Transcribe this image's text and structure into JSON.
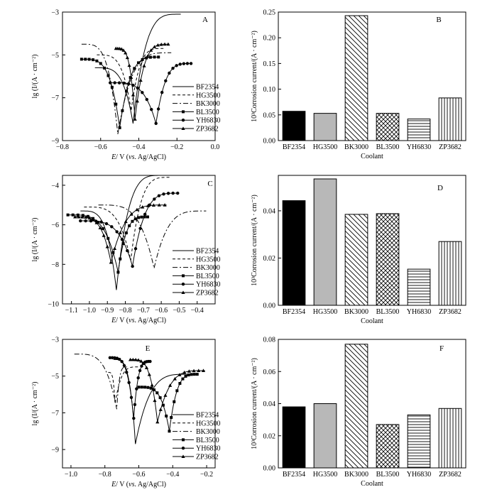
{
  "colors": {
    "black": "#000000",
    "gray": "#b8b8b8",
    "white": "#ffffff"
  },
  "legend": [
    "BF2354",
    "HG3500",
    "BK3000",
    "BL3500",
    "YH6830",
    "ZP3682"
  ],
  "chart_data": [
    {
      "panel": "A",
      "type": "line",
      "xlabel_parts": [
        "E",
        "/ V (",
        "vs",
        ". Ag/AgCl)"
      ],
      "ylabel": "lg (I/(A · cm⁻²)",
      "xlim": [
        -0.8,
        0.0
      ],
      "ylim": [
        -9,
        -3
      ],
      "xticks": [
        -0.8,
        -0.6,
        -0.4,
        -0.2,
        0.0
      ],
      "xtick_labels": [
        "−0.8",
        "−0.6",
        "−0.4",
        "−0.2",
        "0.0"
      ],
      "yticks": [
        -9,
        -7,
        -5,
        -3
      ],
      "ytick_labels": [
        "−9",
        "−7",
        "−5",
        "−3"
      ],
      "series": [
        {
          "name": "BF2354",
          "Ecorr": -0.43,
          "Ic": -8.2,
          "start": [
            -0.63,
            -5.6
          ],
          "end": [
            -0.18,
            -3.1
          ]
        },
        {
          "name": "HG3500",
          "Ecorr": -0.44,
          "Ic": -7.6,
          "start": [
            -0.62,
            -5.0
          ],
          "end": [
            -0.27,
            -4.7
          ]
        },
        {
          "name": "BK3000",
          "Ecorr": -0.51,
          "Ic": -8.7,
          "start": [
            -0.7,
            -4.5
          ],
          "end": [
            -0.23,
            -4.9
          ]
        },
        {
          "name": "BL3500",
          "Ecorr": -0.5,
          "Ic": -8.4,
          "start": [
            -0.7,
            -5.2
          ],
          "end": [
            -0.29,
            -5.1
          ]
        },
        {
          "name": "YH6830",
          "Ecorr": -0.31,
          "Ic": -8.2,
          "start": [
            -0.55,
            -6.3
          ],
          "end": [
            -0.12,
            -5.4
          ]
        },
        {
          "name": "ZP3682",
          "Ecorr": -0.42,
          "Ic": -8.0,
          "start": [
            -0.52,
            -4.7
          ],
          "end": [
            -0.24,
            -4.5
          ]
        }
      ]
    },
    {
      "panel": "B",
      "type": "bar",
      "xlabel": "Coolant",
      "ylabel": "10³Corrosion current/(A · cm⁻²)",
      "categories": [
        "BF2354",
        "HG3500",
        "BK3000",
        "BL3500",
        "YH6830",
        "ZP3682"
      ],
      "values": [
        0.057,
        0.053,
        0.243,
        0.053,
        0.042,
        0.083
      ],
      "patterns": [
        "solid-black",
        "solid-gray",
        "diag",
        "cross",
        "horiz",
        "vert"
      ],
      "ylim": [
        0,
        0.25
      ],
      "yticks": [
        0,
        0.05,
        0.1,
        0.15,
        0.2,
        0.25
      ],
      "ytick_labels": [
        "0.00",
        "0.05",
        "0.10",
        "0.15",
        "0.20",
        "0.25"
      ]
    },
    {
      "panel": "C",
      "type": "line",
      "xlabel_parts": [
        "E",
        "/ V (",
        "vs",
        ". Ag/AgCl)"
      ],
      "ylabel": "lg (I/(A · cm⁻²)",
      "xlim": [
        -1.15,
        -0.3
      ],
      "ylim": [
        -10,
        -3.5
      ],
      "xticks": [
        -1.1,
        -1.0,
        -0.9,
        -0.8,
        -0.7,
        -0.6,
        -0.5,
        -0.4
      ],
      "xtick_labels": [
        "−1.1",
        "−1.0",
        "−0.9",
        "−0.8",
        "−0.7",
        "−0.6",
        "−0.5",
        "−0.4"
      ],
      "yticks": [
        -10,
        -8,
        -6,
        -4
      ],
      "ytick_labels": [
        "−10",
        "−8",
        "−6",
        "−4"
      ],
      "series": [
        {
          "name": "BF2354",
          "Ecorr": -0.85,
          "Ic": -9.3,
          "start": [
            -1.05,
            -5.3
          ],
          "end": [
            -0.59,
            -3.5
          ]
        },
        {
          "name": "HG3500",
          "Ecorr": -0.77,
          "Ic": -7.8,
          "start": [
            -1.03,
            -5.1
          ],
          "end": [
            -0.55,
            -3.6
          ]
        },
        {
          "name": "BK3000",
          "Ecorr": -0.64,
          "Ic": -8.2,
          "start": [
            -0.95,
            -5.0
          ],
          "end": [
            -0.35,
            -5.3
          ]
        },
        {
          "name": "BL3500",
          "Ecorr": -0.84,
          "Ic": -8.4,
          "start": [
            -1.12,
            -5.5
          ],
          "end": [
            -0.67,
            -5.6
          ]
        },
        {
          "name": "YH6830",
          "Ecorr": -0.76,
          "Ic": -8.1,
          "start": [
            -1.05,
            -5.8
          ],
          "end": [
            -0.5,
            -4.4
          ]
        },
        {
          "name": "ZP3682",
          "Ecorr": -0.88,
          "Ic": -7.9,
          "start": [
            -1.08,
            -5.6
          ],
          "end": [
            -0.57,
            -5.0
          ]
        }
      ]
    },
    {
      "panel": "D",
      "type": "bar",
      "xlabel": "Coolant",
      "ylabel": "10³Corrosion current/(A · cm⁻²)",
      "categories": [
        "BF2354",
        "HG3500",
        "BK3000",
        "BL3500",
        "YH6830",
        "ZP3682"
      ],
      "values": [
        0.0443,
        0.0535,
        0.0385,
        0.0388,
        0.0153,
        0.027
      ],
      "patterns": [
        "solid-black",
        "solid-gray",
        "diag",
        "cross",
        "horiz",
        "vert"
      ],
      "ylim": [
        0,
        0.055
      ],
      "yticks": [
        0,
        0.02,
        0.04
      ],
      "ytick_labels": [
        "0.00",
        "0.02",
        "0.04"
      ]
    },
    {
      "panel": "E",
      "type": "line",
      "xlabel_parts": [
        "E",
        "/ V (",
        "vs",
        ". Ag/AgCl)"
      ],
      "ylabel": "lg (I/(A · cm⁻²)",
      "xlim": [
        -1.05,
        -0.15
      ],
      "ylim": [
        -10,
        -3
      ],
      "xticks": [
        -1.0,
        -0.8,
        -0.6,
        -0.4,
        -0.2
      ],
      "xtick_labels": [
        "−1.0",
        "−0.8",
        "−0.6",
        "−0.4",
        "−0.2"
      ],
      "yticks": [
        -9,
        -7,
        -5,
        -3
      ],
      "ytick_labels": [
        "−9",
        "−7",
        "−5",
        "−3"
      ],
      "series": [
        {
          "name": "BF2354",
          "Ecorr": -0.62,
          "Ic": -8.7,
          "start": [
            -0.75,
            -4.1
          ],
          "end": [
            -0.3,
            -4.9
          ]
        },
        {
          "name": "HG3500",
          "Ecorr": -0.74,
          "Ic": -6.5,
          "start": [
            -0.78,
            -4.8
          ],
          "end": [
            -0.6,
            -4.5
          ]
        },
        {
          "name": "BK3000",
          "Ecorr": -0.73,
          "Ic": -6.8,
          "start": [
            -0.98,
            -3.8
          ],
          "end": [
            -0.67,
            -4.5
          ]
        },
        {
          "name": "BL3500",
          "Ecorr": -0.42,
          "Ic": -8.0,
          "start": [
            -0.6,
            -5.6
          ],
          "end": [
            -0.25,
            -4.9
          ]
        },
        {
          "name": "YH6830",
          "Ecorr": -0.63,
          "Ic": -7.3,
          "start": [
            -0.77,
            -4.0
          ],
          "end": [
            -0.53,
            -4.2
          ]
        },
        {
          "name": "ZP3682",
          "Ecorr": -0.49,
          "Ic": -7.5,
          "start": [
            -0.65,
            -4.1
          ],
          "end": [
            -0.21,
            -4.7
          ]
        }
      ]
    },
    {
      "panel": "F",
      "type": "bar",
      "xlabel": "Coolant",
      "ylabel": "10³Corrosion current/(A · cm⁻²)",
      "categories": [
        "BF2354",
        "HG3500",
        "BK3000",
        "BL3500",
        "YH6830",
        "ZP3682"
      ],
      "values": [
        0.038,
        0.04,
        0.077,
        0.027,
        0.033,
        0.037
      ],
      "patterns": [
        "solid-black",
        "solid-gray",
        "diag",
        "cross",
        "horiz",
        "vert"
      ],
      "ylim": [
        0,
        0.08
      ],
      "yticks": [
        0,
        0.02,
        0.04,
        0.06,
        0.08
      ],
      "ytick_labels": [
        "0.00",
        "0.02",
        "0.04",
        "0.06",
        "0.08"
      ]
    }
  ]
}
